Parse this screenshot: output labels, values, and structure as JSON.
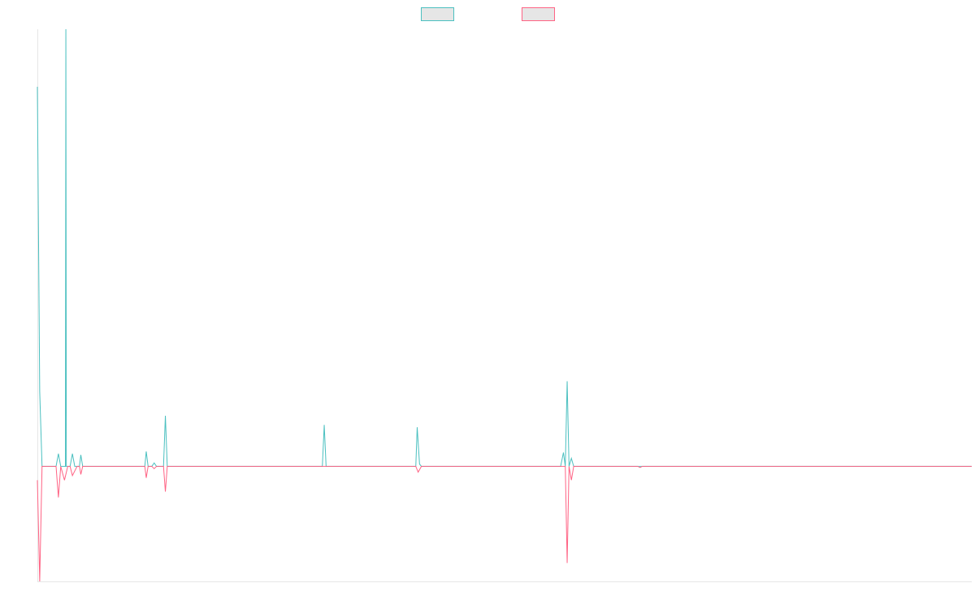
{
  "chart_data": {
    "type": "line",
    "title": "",
    "xlabel": "",
    "ylabel": "",
    "grid": false,
    "legend": {
      "placement": "top-center",
      "entries": [
        {
          "label": "",
          "color": "#4bc0c0"
        },
        {
          "label": "",
          "color": "#ff6384"
        }
      ]
    },
    "xlim": [
      0,
      200
    ],
    "ylim": [
      -100,
      380
    ],
    "series": [
      {
        "color": "#4bc0c0",
        "points": [
          [
            0,
            330
          ],
          [
            0.5,
            65
          ],
          [
            1,
            0
          ],
          [
            4,
            0
          ],
          [
            4.5,
            11
          ],
          [
            5,
            0
          ],
          [
            6,
            0
          ],
          [
            6.1,
            380
          ],
          [
            6.2,
            0
          ],
          [
            7,
            0
          ],
          [
            7.5,
            11
          ],
          [
            8,
            0
          ],
          [
            9,
            0
          ],
          [
            9.3,
            10
          ],
          [
            9.7,
            0
          ],
          [
            23,
            0
          ],
          [
            23.3,
            13
          ],
          [
            23.7,
            0
          ],
          [
            24.5,
            0
          ],
          [
            25,
            3
          ],
          [
            25.5,
            0
          ],
          [
            27,
            0
          ],
          [
            27.4,
            44
          ],
          [
            27.8,
            0
          ],
          [
            61,
            0
          ],
          [
            61.4,
            36
          ],
          [
            61.8,
            0
          ],
          [
            81,
            0
          ],
          [
            81.3,
            34
          ],
          [
            81.8,
            2
          ],
          [
            82.2,
            0
          ],
          [
            112,
            0
          ],
          [
            112.6,
            12
          ],
          [
            113,
            0
          ],
          [
            113.4,
            74
          ],
          [
            113.8,
            0
          ],
          [
            114.3,
            7
          ],
          [
            114.8,
            0
          ],
          [
            200,
            0
          ]
        ]
      },
      {
        "color": "#ff6384",
        "points": [
          [
            0,
            -12
          ],
          [
            0.5,
            -100
          ],
          [
            1,
            0
          ],
          [
            4,
            0
          ],
          [
            4.5,
            -27
          ],
          [
            5,
            0
          ],
          [
            5.8,
            -12
          ],
          [
            6.5,
            0
          ],
          [
            7,
            0
          ],
          [
            7.5,
            -8
          ],
          [
            8.5,
            0
          ],
          [
            9,
            0
          ],
          [
            9.3,
            -7
          ],
          [
            9.7,
            0
          ],
          [
            23,
            0
          ],
          [
            23.3,
            -10
          ],
          [
            23.7,
            0
          ],
          [
            24.5,
            0
          ],
          [
            25,
            -2
          ],
          [
            25.5,
            0
          ],
          [
            27,
            0
          ],
          [
            27.4,
            -22
          ],
          [
            27.8,
            0
          ],
          [
            81,
            0
          ],
          [
            81.5,
            -5
          ],
          [
            82.2,
            0
          ],
          [
            113,
            0
          ],
          [
            113.4,
            -84
          ],
          [
            113.8,
            0
          ],
          [
            114.3,
            -12
          ],
          [
            114.8,
            0
          ],
          [
            128.5,
            0
          ],
          [
            129,
            -1
          ],
          [
            129.5,
            0
          ],
          [
            200,
            0
          ]
        ]
      }
    ]
  }
}
